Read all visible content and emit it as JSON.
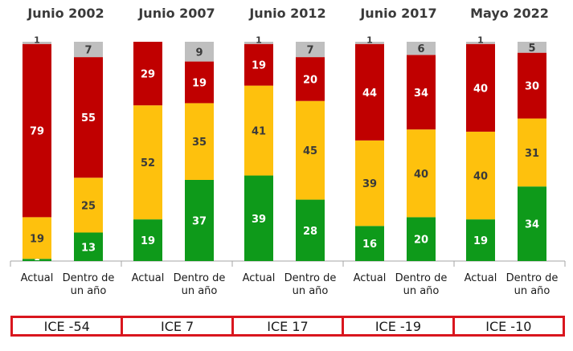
{
  "chart_data": {
    "type": "bar",
    "stacked": true,
    "normalized": true,
    "ylim": [
      0,
      100
    ],
    "groups": [
      {
        "title": "Junio 2002",
        "ice_label": "ICE -54",
        "bars": [
          {
            "label": "Actual",
            "values": {
              "green": 1,
              "yellow": 19,
              "red": 79,
              "gray": 1
            }
          },
          {
            "label": "Dentro de un año",
            "values": {
              "green": 13,
              "yellow": 25,
              "red": 55,
              "gray": 7
            }
          }
        ]
      },
      {
        "title": "Junio 2007",
        "ice_label": "ICE 7",
        "bars": [
          {
            "label": "Actual",
            "values": {
              "green": 19,
              "yellow": 52,
              "red": 29,
              "gray": 0
            }
          },
          {
            "label": "Dentro de un año",
            "values": {
              "green": 37,
              "yellow": 35,
              "red": 19,
              "gray": 9
            }
          }
        ]
      },
      {
        "title": "Junio 2012",
        "ice_label": "ICE 17",
        "bars": [
          {
            "label": "Actual",
            "values": {
              "green": 39,
              "yellow": 41,
              "red": 19,
              "gray": 1
            }
          },
          {
            "label": "Dentro de un año",
            "values": {
              "green": 28,
              "yellow": 45,
              "red": 20,
              "gray": 7
            }
          }
        ]
      },
      {
        "title": "Junio 2017",
        "ice_label": "ICE -19",
        "bars": [
          {
            "label": "Actual",
            "values": {
              "green": 16,
              "yellow": 39,
              "red": 44,
              "gray": 1
            }
          },
          {
            "label": "Dentro de un año",
            "values": {
              "green": 20,
              "yellow": 40,
              "red": 34,
              "gray": 6
            }
          }
        ]
      },
      {
        "title": "Mayo 2022",
        "ice_label": "ICE -10",
        "bars": [
          {
            "label": "Actual",
            "values": {
              "green": 19,
              "yellow": 40,
              "red": 40,
              "gray": 1
            }
          },
          {
            "label": "Dentro de un año",
            "values": {
              "green": 34,
              "yellow": 31,
              "red": 30,
              "gray": 5
            }
          }
        ]
      }
    ],
    "colors": {
      "green": "#0e9a1a",
      "yellow": "#fec10d",
      "red": "#c00000",
      "gray": "#bfbfbf"
    }
  }
}
